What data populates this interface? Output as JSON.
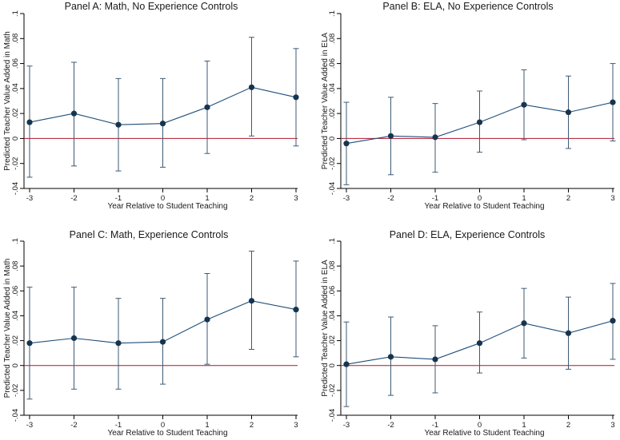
{
  "chart_data": [
    {
      "type": "line",
      "title": "Panel A: Math, No Experience Controls",
      "xlabel": "Year Relative to Student Teaching",
      "ylabel": "Predicted Teacher Value Added in Math",
      "x": [
        -3,
        -2,
        -1,
        0,
        1,
        2,
        3
      ],
      "x_tick_labels": [
        "-3",
        "-2",
        "-1",
        "0",
        "1",
        "2",
        "3"
      ],
      "y_tick_labels": [
        "-.04",
        "-.02",
        "0",
        ".02",
        ".04",
        ".06",
        ".08",
        ".1"
      ],
      "ylim": [
        -0.04,
        0.1
      ],
      "series": [
        {
          "name": "Point estimate",
          "values": [
            0.013,
            0.02,
            0.011,
            0.012,
            0.025,
            0.041,
            0.033
          ],
          "ci_low": [
            -0.031,
            -0.022,
            -0.026,
            -0.023,
            -0.012,
            0.002,
            -0.006
          ],
          "ci_high": [
            0.058,
            0.061,
            0.048,
            0.048,
            0.062,
            0.081,
            0.072
          ]
        }
      ],
      "reference_line": 0
    },
    {
      "type": "line",
      "title": "Panel B: ELA, No Experience Controls",
      "xlabel": "Year Relative to Student Teaching",
      "ylabel": "Predicted Teacher Value Added in ELA",
      "x": [
        -3,
        -2,
        -1,
        0,
        1,
        2,
        3
      ],
      "x_tick_labels": [
        "-3",
        "-2",
        "-1",
        "0",
        "1",
        "2",
        "3"
      ],
      "y_tick_labels": [
        "-.04",
        "-.02",
        "0",
        ".02",
        ".04",
        ".06",
        ".08",
        ".1"
      ],
      "ylim": [
        -0.04,
        0.1
      ],
      "series": [
        {
          "name": "Point estimate",
          "values": [
            -0.004,
            0.002,
            0.001,
            0.013,
            0.027,
            0.021,
            0.029
          ],
          "ci_low": [
            -0.037,
            -0.029,
            -0.027,
            -0.011,
            -0.001,
            -0.008,
            -0.002
          ],
          "ci_high": [
            0.029,
            0.033,
            0.028,
            0.038,
            0.055,
            0.05,
            0.06
          ]
        }
      ],
      "reference_line": 0
    },
    {
      "type": "line",
      "title": "Panel C: Math, Experience Controls",
      "xlabel": "Year Relative to Student Teaching",
      "ylabel": "Predicted Teacher Value Added in Math",
      "x": [
        -3,
        -2,
        -1,
        0,
        1,
        2,
        3
      ],
      "x_tick_labels": [
        "-3",
        "-2",
        "-1",
        "0",
        "1",
        "2",
        "3"
      ],
      "y_tick_labels": [
        "-.04",
        "-.02",
        "0",
        ".02",
        ".04",
        ".06",
        ".08",
        ".1"
      ],
      "ylim": [
        -0.04,
        0.1
      ],
      "series": [
        {
          "name": "Point estimate",
          "values": [
            0.018,
            0.022,
            0.018,
            0.019,
            0.037,
            0.052,
            0.045
          ],
          "ci_low": [
            -0.027,
            -0.019,
            -0.019,
            -0.015,
            0.001,
            0.013,
            0.007
          ],
          "ci_high": [
            0.063,
            0.063,
            0.054,
            0.054,
            0.074,
            0.092,
            0.084
          ]
        }
      ],
      "reference_line": 0
    },
    {
      "type": "line",
      "title": "Panel D: ELA, Experience Controls",
      "xlabel": "Year Relative to Student Teaching",
      "ylabel": "Predicted Teacher Value Added in ELA",
      "x": [
        -3,
        -2,
        -1,
        0,
        1,
        2,
        3
      ],
      "x_tick_labels": [
        "-3",
        "-2",
        "-1",
        "0",
        "1",
        "2",
        "3"
      ],
      "y_tick_labels": [
        "-.04",
        "-.02",
        "0",
        ".02",
        ".04",
        ".06",
        ".08",
        ".1"
      ],
      "ylim": [
        -0.04,
        0.1
      ],
      "series": [
        {
          "name": "Point estimate",
          "values": [
            0.001,
            0.007,
            0.005,
            0.018,
            0.034,
            0.026,
            0.036
          ],
          "ci_low": [
            -0.033,
            -0.024,
            -0.022,
            -0.006,
            0.006,
            -0.003,
            0.005
          ],
          "ci_high": [
            0.035,
            0.039,
            0.032,
            0.043,
            0.062,
            0.055,
            0.066
          ]
        }
      ],
      "reference_line": 0
    }
  ],
  "colors": {
    "line": "#1f4e79",
    "marker": "#17344f",
    "ci": "#3d5a73",
    "reference": "#b0142c",
    "frame": "#000000"
  }
}
